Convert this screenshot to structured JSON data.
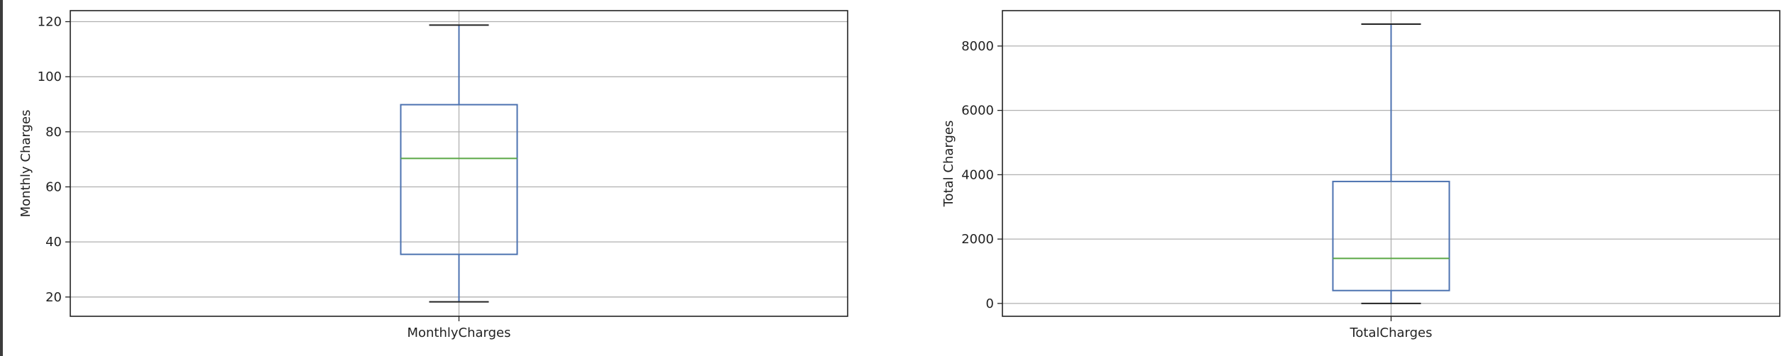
{
  "chart_data": [
    {
      "type": "box",
      "categories": [
        "MonthlyCharges"
      ],
      "ylabel": "Monthly Charges",
      "ylim": [
        13,
        124
      ],
      "yticks": [
        20,
        40,
        60,
        80,
        100,
        120
      ],
      "ytick_labels": [
        "20",
        "40",
        "60",
        "80",
        "100",
        "120"
      ],
      "grid": true,
      "box": {
        "whisker_low": 18.25,
        "q1": 35.5,
        "median": 70.35,
        "q3": 89.85,
        "whisker_high": 118.75
      },
      "colors": {
        "box": "#4c72b0",
        "median": "#5aa845",
        "grid": "#b0b0b0"
      }
    },
    {
      "type": "box",
      "categories": [
        "TotalCharges"
      ],
      "ylabel": "Total Charges",
      "ylim": [
        -400,
        9100
      ],
      "yticks": [
        0,
        2000,
        4000,
        6000,
        8000
      ],
      "ytick_labels": [
        "0",
        "2000",
        "4000",
        "6000",
        "8000"
      ],
      "grid": true,
      "box": {
        "whisker_low": 0,
        "q1": 400,
        "median": 1400,
        "q3": 3790,
        "whisker_high": 8680
      },
      "colors": {
        "box": "#4c72b0",
        "median": "#5aa845",
        "grid": "#b0b0b0"
      }
    }
  ]
}
